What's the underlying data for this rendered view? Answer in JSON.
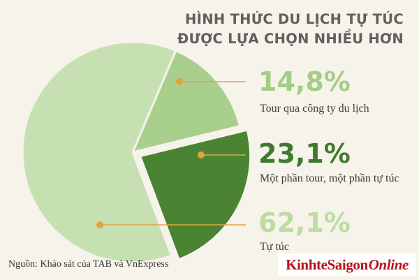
{
  "chart_data": {
    "type": "pie",
    "title": [
      "HÌNH THỨC DU LỊCH TỰ TÚC",
      "ĐƯỢC LỰA CHỌN NHIỀU HƠN"
    ],
    "slices": [
      {
        "label": "Tour qua công ty du lịch",
        "value": 14.8,
        "value_text": "14,8%",
        "color": "#a9cf8c",
        "text_color": "#a5cd86"
      },
      {
        "label": "Một phần tour, một phần tự túc",
        "value": 23.1,
        "value_text": "23,1%",
        "color": "#4a8432",
        "text_color": "#3f7a2e"
      },
      {
        "label": "Tự túc",
        "value": 62.1,
        "value_text": "62,1%",
        "color": "#c7e0b1",
        "text_color": "#bcdca4"
      }
    ],
    "source": "Nguồn: Khảo sát của TAB và VnExpress"
  },
  "logo": {
    "part1": "KinhteSaigon",
    "part2": "Online"
  },
  "colors": {
    "background": "#f6f3ea",
    "leader": "#e3a33f",
    "logo_bg": "#ffffff",
    "logo_text": "#b8131b"
  }
}
